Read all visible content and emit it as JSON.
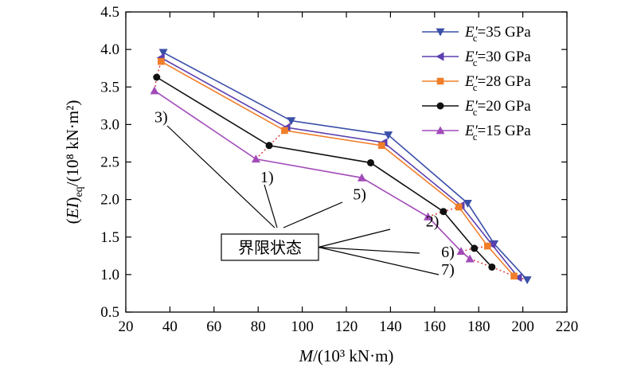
{
  "chart_data": {
    "type": "line",
    "xlabel": "M/(10³ kN·m)",
    "ylabel": "(EI)eq/(10⁸ kN·m²)",
    "xlim": [
      20,
      220
    ],
    "ylim": [
      0.5,
      4.5
    ],
    "xticks": [
      20,
      40,
      60,
      80,
      100,
      120,
      140,
      160,
      180,
      200,
      220
    ],
    "yticks": [
      0.5,
      1.0,
      1.5,
      2.0,
      2.5,
      3.0,
      3.5,
      4.0,
      4.5
    ],
    "legend_position": "top-right",
    "series": [
      {
        "name": "E'c=35 GPa",
        "legend_main": "E′",
        "legend_sub": "c",
        "legend_rest": "=35 GPa",
        "color": "#3a4fa8",
        "marker": "triangle-down",
        "points": [
          [
            37,
            3.96
          ],
          [
            95,
            3.05
          ],
          [
            139,
            2.86
          ],
          [
            175,
            1.95
          ],
          [
            187,
            1.41
          ],
          [
            202,
            0.93
          ]
        ]
      },
      {
        "name": "E'c=30 GPa",
        "legend_main": "E′",
        "legend_sub": "c",
        "legend_rest": "=30 GPa",
        "color": "#5b3fb0",
        "marker": "triangle-left",
        "points": [
          [
            36,
            3.89
          ],
          [
            93,
            2.96
          ],
          [
            137,
            2.76
          ],
          [
            172,
            1.92
          ],
          [
            186,
            1.4
          ],
          [
            198,
            0.96
          ]
        ]
      },
      {
        "name": "E'c=28 GPa",
        "legend_main": "E′",
        "legend_sub": "c",
        "legend_rest": "=28 GPa",
        "color": "#f07e2a",
        "marker": "square",
        "points": [
          [
            36,
            3.84
          ],
          [
            92,
            2.92
          ],
          [
            136,
            2.72
          ],
          [
            171,
            1.9
          ],
          [
            184,
            1.38
          ],
          [
            196,
            0.98
          ]
        ]
      },
      {
        "name": "E'c=20 GPa",
        "legend_main": "E′",
        "legend_sub": "c",
        "legend_rest": "=20 GPa",
        "color": "#111111",
        "marker": "circle",
        "points": [
          [
            34,
            3.63
          ],
          [
            85,
            2.72
          ],
          [
            131,
            2.49
          ],
          [
            164,
            1.84
          ],
          [
            178,
            1.35
          ],
          [
            186,
            1.1
          ]
        ]
      },
      {
        "name": "E'c=15 GPa",
        "legend_main": "E′",
        "legend_sub": "c",
        "legend_rest": "=15 GPa",
        "color": "#a24bb8",
        "marker": "triangle-up",
        "points": [
          [
            33,
            3.45
          ],
          [
            79,
            2.54
          ],
          [
            127,
            2.29
          ],
          [
            157,
            1.77
          ],
          [
            172,
            1.31
          ],
          [
            176,
            1.21
          ]
        ]
      }
    ],
    "limit_state_lines": [
      {
        "x": [
          33,
          34,
          36,
          36,
          37
        ],
        "y": [
          3.45,
          3.63,
          3.84,
          3.89,
          3.96
        ]
      },
      {
        "x": [
          79,
          85,
          92,
          93,
          95
        ],
        "y": [
          2.54,
          2.72,
          2.92,
          2.96,
          3.05
        ]
      },
      {
        "x": [
          157,
          164,
          171,
          172,
          175
        ],
        "y": [
          1.77,
          1.84,
          1.9,
          1.92,
          1.95
        ]
      },
      {
        "x": [
          176,
          172,
          178,
          184,
          186,
          187
        ],
        "y": [
          1.21,
          1.31,
          1.35,
          1.38,
          1.4,
          1.41
        ]
      },
      {
        "x": [
          176,
          186,
          196,
          198,
          202
        ],
        "y": [
          1.21,
          1.1,
          0.98,
          0.96,
          0.93
        ]
      }
    ],
    "limit_state_color": "#d4343c",
    "annotations": [
      {
        "label": "3)",
        "x": 33,
        "y": 3.03
      },
      {
        "label": "1)",
        "x": 81,
        "y": 2.23
      },
      {
        "label": "5)",
        "x": 123,
        "y": 2.0
      },
      {
        "label": "2)",
        "x": 156,
        "y": 1.64
      },
      {
        "label": "6)",
        "x": 163,
        "y": 1.23
      },
      {
        "label": "7)",
        "x": 163,
        "y": 1.0
      }
    ],
    "boxed_label": "界限状态"
  }
}
